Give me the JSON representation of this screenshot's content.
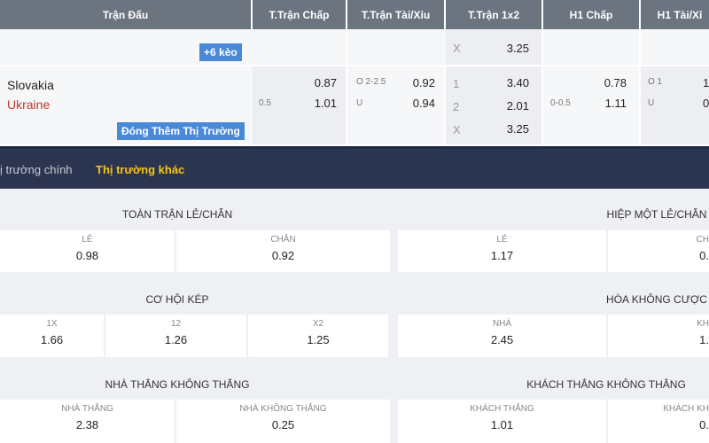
{
  "table": {
    "headers": [
      "Trận Đấu",
      "T.Trận Chấp",
      "T.Trận Tài/Xỉu",
      "T.Trận 1x2",
      "H1 Chấp",
      "H1 Tài/Xỉ"
    ],
    "prev_row": {
      "more_button": "+6 kèo",
      "x_label": "X",
      "x_odd": "3.25"
    },
    "match": {
      "home": "Slovakia",
      "away": "Ukraine",
      "collapse_button": "Đóng Thêm Thị Trường",
      "ft_handicap": {
        "line": "0.5",
        "home": "0.87",
        "away": "1.01"
      },
      "ft_ou": {
        "over_label": "O 2-2.5",
        "over": "0.92",
        "under_label": "U",
        "under": "0.94"
      },
      "ft_1x2": [
        {
          "l": "1",
          "v": "3.40"
        },
        {
          "l": "2",
          "v": "2.01"
        },
        {
          "l": "X",
          "v": "3.25"
        }
      ],
      "h1_handicap": {
        "line": "0-0.5",
        "home": "0.78",
        "away": "1.11"
      },
      "h1_ou": {
        "over_label": "O 1",
        "over": "1",
        "under_label": "U",
        "under": "0"
      }
    }
  },
  "tabs": {
    "main": "ị trường chính",
    "other": "Thị trường khác",
    "active_color": "#f5c518"
  },
  "sections": {
    "s1": {
      "title": "TOÀN TRẬN LẺ/CHẴN",
      "cells": [
        {
          "k": "LẺ",
          "v": "0.98"
        },
        {
          "k": "CHẴN",
          "v": "0.92"
        }
      ]
    },
    "s2": {
      "title": "HIỆP MỘT LẺ/CHẴN",
      "cells": [
        {
          "k": "LẺ",
          "v": "1.17"
        },
        {
          "k": "CH",
          "v": "0."
        }
      ]
    },
    "s3": {
      "title": "CƠ HỘI KÉP",
      "cells": [
        {
          "k": "1X",
          "v": "1.66"
        },
        {
          "k": "12",
          "v": "1.26"
        },
        {
          "k": "X2",
          "v": "1.25"
        }
      ]
    },
    "s4": {
      "title": "HÒA KHÔNG CƯỢC",
      "cells": [
        {
          "k": "NHÀ",
          "v": "2.45"
        },
        {
          "k": "KH",
          "v": "1."
        }
      ]
    },
    "s5": {
      "title": "NHÀ THẮNG KHÔNG THẮNG",
      "cells": [
        {
          "k": "NHÀ THẮNG",
          "v": "2.38"
        },
        {
          "k": "NHÀ KHÔNG THẮNG",
          "v": "0.25"
        }
      ]
    },
    "s6": {
      "title": "KHÁCH THẮNG KHÔNG THẮNG",
      "cells": [
        {
          "k": "KHÁCH THẮNG",
          "v": "1.01"
        },
        {
          "k": "KHÁCH KH",
          "v": "0."
        }
      ]
    }
  }
}
